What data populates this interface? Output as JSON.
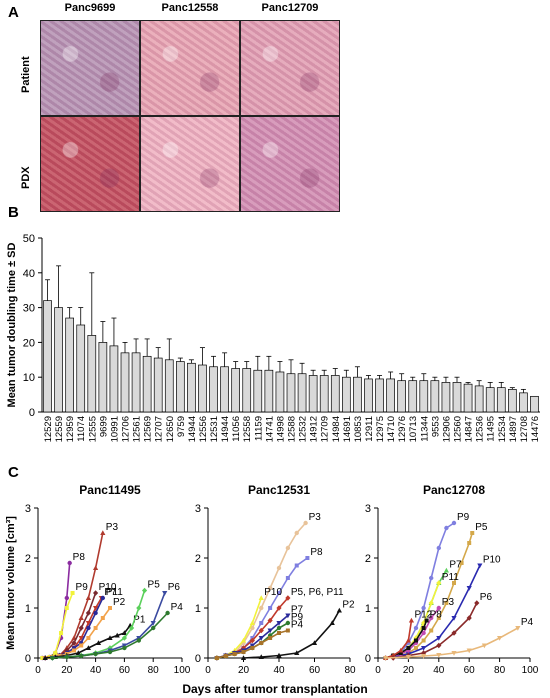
{
  "panels": {
    "a": "A",
    "b": "B",
    "c": "C"
  },
  "histology": {
    "columns": [
      "Panc9699",
      "Panc12558",
      "Panc12709"
    ],
    "rows": [
      "Patient",
      "PDX"
    ],
    "tile_colors": [
      [
        "#b794b4",
        "#e8a5b3",
        "#e3a0b4"
      ],
      [
        "#c4505f",
        "#f0b3c2",
        "#d38fb3"
      ]
    ]
  },
  "chart_data": [
    {
      "type": "bar",
      "ylabel": "Mean tumor doubling time ± SD",
      "ylim": [
        0,
        50
      ],
      "yticks": [
        0,
        10,
        20,
        30,
        40,
        50
      ],
      "bar_color": "#d9d9d9",
      "categories": [
        "12529",
        "12559",
        "12959",
        "11074",
        "12555",
        "9699",
        "10991",
        "12706",
        "12561",
        "12569",
        "12707",
        "12650",
        "9759",
        "14944",
        "12556",
        "12531",
        "14944",
        "11056",
        "12558",
        "11159",
        "14741",
        "14998",
        "12588",
        "12532",
        "14912",
        "12709",
        "14984",
        "14691",
        "10853",
        "12911",
        "12975",
        "14710",
        "12976",
        "10713",
        "11344",
        "9553",
        "12906",
        "12560",
        "14847",
        "12536",
        "11495",
        "12534",
        "14897",
        "12708",
        "14476"
      ],
      "values": [
        32,
        30,
        27,
        25,
        22,
        20,
        19,
        17,
        17,
        16,
        15.5,
        15,
        14.5,
        14,
        13.5,
        13,
        13,
        12.5,
        12.5,
        12,
        12,
        11.5,
        11,
        11,
        10.5,
        10.5,
        10.5,
        10,
        10,
        9.5,
        9.5,
        9.5,
        9,
        9,
        9,
        9,
        8.5,
        8.5,
        8,
        7.5,
        7,
        7,
        6.5,
        5.5,
        4.5
      ],
      "sd": [
        6,
        12,
        3,
        5,
        18,
        6,
        8,
        3,
        4,
        5,
        3,
        6,
        1,
        1,
        5,
        3,
        4,
        2,
        2,
        4,
        4,
        3,
        4,
        3,
        1.5,
        1.5,
        2,
        2,
        3,
        1,
        1,
        2,
        2,
        1,
        2,
        1,
        1.5,
        1.5,
        0.5,
        1.5,
        1.5,
        1.5,
        0.5,
        1,
        0
      ]
    },
    {
      "type": "line",
      "title": "Panc11495",
      "ylabel": "Mean tumor volume [cm³]",
      "xlim": [
        0,
        100
      ],
      "ylim": [
        0,
        3
      ],
      "xticks": [
        0,
        20,
        40,
        60,
        80,
        100
      ],
      "yticks": [
        0,
        1,
        2,
        3
      ],
      "series": [
        {
          "name": "P8",
          "color": "#8b2ca0",
          "x": [
            3,
            8,
            12,
            16,
            20,
            22
          ],
          "y": [
            0,
            0.02,
            0.1,
            0.4,
            1.2,
            1.9
          ]
        },
        {
          "name": "P9",
          "color": "#f2f23a",
          "x": [
            3,
            8,
            12,
            16,
            20,
            24
          ],
          "y": [
            0,
            0.02,
            0.1,
            0.5,
            1.0,
            1.3
          ]
        },
        {
          "name": "P3",
          "color": "#b03a2e",
          "x": [
            5,
            10,
            15,
            20,
            25,
            30,
            35,
            40,
            45
          ],
          "y": [
            0,
            0.02,
            0.05,
            0.2,
            0.4,
            0.8,
            1.2,
            1.8,
            2.5
          ]
        },
        {
          "name": "P10",
          "color": "#7a2a30",
          "x": [
            5,
            10,
            15,
            20,
            25,
            30,
            35,
            40
          ],
          "y": [
            0,
            0.02,
            0.05,
            0.15,
            0.3,
            0.6,
            0.9,
            1.3
          ]
        },
        {
          "name": "P7",
          "color": "#c0392b",
          "x": [
            5,
            10,
            15,
            20,
            25,
            30,
            35,
            40,
            44
          ],
          "y": [
            0,
            0.02,
            0.05,
            0.1,
            0.2,
            0.4,
            0.7,
            1.0,
            1.2
          ]
        },
        {
          "name": "P11",
          "color": "#2a2a9a",
          "x": [
            5,
            10,
            15,
            20,
            25,
            30,
            35,
            40,
            45
          ],
          "y": [
            0,
            0.02,
            0.05,
            0.1,
            0.2,
            0.3,
            0.6,
            0.9,
            1.2
          ]
        },
        {
          "name": "P2",
          "color": "#f2a24a",
          "x": [
            5,
            10,
            15,
            20,
            25,
            30,
            35,
            40,
            45,
            50
          ],
          "y": [
            0,
            0.02,
            0.04,
            0.08,
            0.15,
            0.25,
            0.4,
            0.6,
            0.8,
            1.0
          ]
        },
        {
          "name": "P1",
          "color": "#111111",
          "x": [
            5,
            12,
            20,
            28,
            35,
            42,
            50,
            55,
            60,
            64
          ],
          "y": [
            0,
            0.02,
            0.05,
            0.1,
            0.2,
            0.3,
            0.4,
            0.45,
            0.5,
            0.65
          ]
        },
        {
          "name": "P5",
          "color": "#5bd05b",
          "x": [
            10,
            20,
            30,
            40,
            50,
            60,
            65,
            70,
            74
          ],
          "y": [
            0,
            0.02,
            0.05,
            0.1,
            0.2,
            0.4,
            0.6,
            1.0,
            1.35
          ]
        },
        {
          "name": "P6",
          "color": "#3a4aa0",
          "x": [
            10,
            20,
            30,
            40,
            50,
            60,
            70,
            80,
            88
          ],
          "y": [
            0,
            0.02,
            0.04,
            0.08,
            0.15,
            0.25,
            0.4,
            0.7,
            1.3
          ]
        },
        {
          "name": "P4",
          "color": "#2e7a2e",
          "x": [
            10,
            20,
            30,
            40,
            50,
            60,
            70,
            80,
            90
          ],
          "y": [
            0,
            0.02,
            0.04,
            0.08,
            0.12,
            0.2,
            0.35,
            0.6,
            0.9
          ]
        }
      ]
    },
    {
      "type": "line",
      "title": "Panc12531",
      "xlim": [
        0,
        80
      ],
      "ylim": [
        0,
        3
      ],
      "xticks": [
        0,
        20,
        40,
        60,
        80
      ],
      "yticks": [
        0,
        1,
        2,
        3
      ],
      "series": [
        {
          "name": "P3",
          "color": "#e8c39a",
          "x": [
            5,
            10,
            15,
            20,
            25,
            30,
            35,
            40,
            45,
            50,
            55
          ],
          "y": [
            0,
            0.05,
            0.1,
            0.3,
            0.6,
            1.0,
            1.4,
            1.8,
            2.2,
            2.5,
            2.7
          ]
        },
        {
          "name": "P8",
          "color": "#7f7fe0",
          "x": [
            5,
            10,
            15,
            20,
            25,
            30,
            35,
            40,
            45,
            50,
            56
          ],
          "y": [
            0,
            0.05,
            0.1,
            0.2,
            0.4,
            0.7,
            1.0,
            1.3,
            1.6,
            1.85,
            2.0
          ]
        },
        {
          "name": "P10",
          "color": "#f2f23a",
          "x": [
            5,
            10,
            15,
            20,
            25,
            30
          ],
          "y": [
            0,
            0.05,
            0.15,
            0.35,
            0.7,
            1.2
          ]
        },
        {
          "name": "P5, P6, P11",
          "color": "#c0392b",
          "x": [
            5,
            10,
            15,
            20,
            25,
            30,
            35,
            40,
            45
          ],
          "y": [
            0,
            0.05,
            0.1,
            0.2,
            0.35,
            0.55,
            0.75,
            1.0,
            1.2
          ]
        },
        {
          "name": "P7",
          "color": "#2a2a9a",
          "x": [
            5,
            10,
            15,
            20,
            25,
            30,
            35,
            40,
            45
          ],
          "y": [
            0,
            0.05,
            0.1,
            0.15,
            0.25,
            0.4,
            0.55,
            0.7,
            0.85
          ]
        },
        {
          "name": "P9",
          "color": "#2e7a2e",
          "x": [
            5,
            10,
            15,
            20,
            25,
            30,
            35,
            40,
            45
          ],
          "y": [
            0,
            0.04,
            0.08,
            0.12,
            0.2,
            0.3,
            0.45,
            0.6,
            0.7
          ]
        },
        {
          "name": "P4",
          "color": "#a8732a",
          "x": [
            5,
            10,
            15,
            20,
            25,
            30,
            35,
            40,
            45
          ],
          "y": [
            0,
            0.04,
            0.08,
            0.12,
            0.2,
            0.3,
            0.4,
            0.5,
            0.55
          ]
        },
        {
          "name": "P2",
          "color": "#111111",
          "x": [
            20,
            30,
            40,
            50,
            60,
            70,
            74
          ],
          "y": [
            0,
            0.02,
            0.05,
            0.1,
            0.3,
            0.7,
            0.95
          ]
        }
      ]
    },
    {
      "type": "line",
      "title": "Panc12708",
      "xlim": [
        0,
        100
      ],
      "ylim": [
        0,
        3
      ],
      "xticks": [
        0,
        20,
        40,
        60,
        80,
        100
      ],
      "yticks": [
        0,
        1,
        2,
        3
      ],
      "series": [
        {
          "name": "P9",
          "color": "#7f7fe0",
          "x": [
            5,
            10,
            15,
            20,
            25,
            30,
            35,
            40,
            45,
            50
          ],
          "y": [
            0,
            0.05,
            0.1,
            0.3,
            0.6,
            1.0,
            1.6,
            2.2,
            2.6,
            2.7
          ]
        },
        {
          "name": "P5",
          "color": "#d4a84a",
          "x": [
            5,
            10,
            15,
            20,
            25,
            30,
            35,
            40,
            45,
            50,
            55,
            60,
            62
          ],
          "y": [
            0,
            0.02,
            0.05,
            0.1,
            0.2,
            0.35,
            0.55,
            0.8,
            1.1,
            1.5,
            1.9,
            2.3,
            2.5
          ]
        },
        {
          "name": "P7",
          "color": "#5bd05b",
          "x": [
            5,
            10,
            15,
            20,
            25,
            30,
            35,
            40,
            45
          ],
          "y": [
            0,
            0.05,
            0.1,
            0.2,
            0.4,
            0.7,
            1.1,
            1.5,
            1.75
          ]
        },
        {
          "name": "P11",
          "color": "#f2f23a",
          "x": [
            5,
            10,
            15,
            20,
            25,
            30,
            35,
            40
          ],
          "y": [
            0,
            0.05,
            0.1,
            0.2,
            0.4,
            0.7,
            1.1,
            1.5
          ]
        },
        {
          "name": "P10",
          "color": "#2a2ab0",
          "x": [
            5,
            10,
            20,
            30,
            40,
            50,
            60,
            67
          ],
          "y": [
            0,
            0.03,
            0.08,
            0.2,
            0.4,
            0.8,
            1.4,
            1.85
          ]
        },
        {
          "name": "P3",
          "color": "#c04ab0",
          "x": [
            5,
            10,
            15,
            20,
            25,
            30,
            35,
            40
          ],
          "y": [
            0,
            0.04,
            0.08,
            0.15,
            0.3,
            0.5,
            0.8,
            1.0
          ]
        },
        {
          "name": "P8",
          "color": "#111111",
          "x": [
            5,
            10,
            15,
            20,
            25,
            30,
            32
          ],
          "y": [
            0,
            0.05,
            0.1,
            0.2,
            0.35,
            0.6,
            0.75
          ]
        },
        {
          "name": "P12",
          "color": "#c0392b",
          "x": [
            5,
            10,
            15,
            20,
            22
          ],
          "y": [
            0,
            0.05,
            0.15,
            0.35,
            0.75
          ]
        },
        {
          "name": "P6",
          "color": "#8a2a2a",
          "x": [
            10,
            20,
            30,
            40,
            50,
            60,
            65
          ],
          "y": [
            0,
            0.05,
            0.1,
            0.25,
            0.5,
            0.8,
            1.1
          ]
        },
        {
          "name": "P4",
          "color": "#e8b87a",
          "x": [
            5,
            20,
            30,
            40,
            50,
            60,
            70,
            80,
            92
          ],
          "y": [
            0,
            0.02,
            0.04,
            0.06,
            0.1,
            0.15,
            0.25,
            0.4,
            0.6
          ]
        }
      ]
    }
  ],
  "growth": {
    "xlabel": "Days after tumor transplantation"
  }
}
